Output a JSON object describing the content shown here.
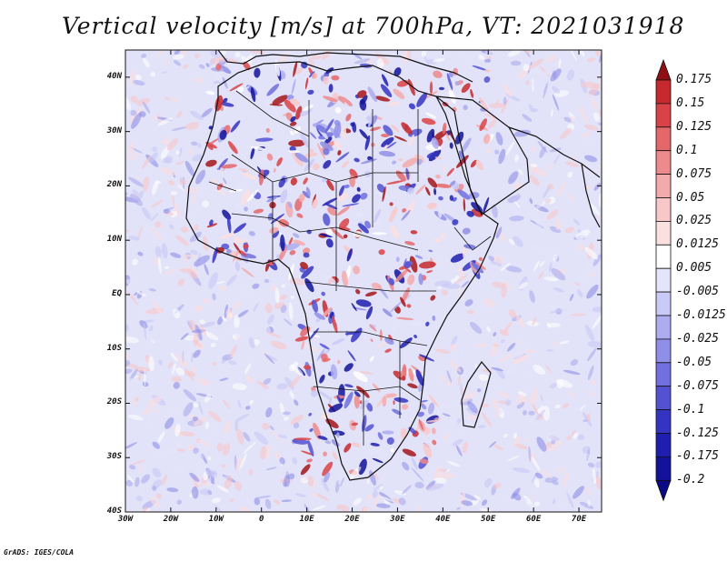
{
  "title": "Vertical velocity [m/s] at 700hPa, VT: 2021031918",
  "credit": "GrADS: IGES/COLA",
  "map": {
    "region": "Africa",
    "variable": "vertical velocity",
    "level": "700hPa",
    "valid_time": "2021031918",
    "lat_range": [
      -40,
      45
    ],
    "lon_range": [
      -30,
      75
    ]
  },
  "axes": {
    "lat_ticks": [
      {
        "value": 40,
        "label": "40N"
      },
      {
        "value": 30,
        "label": "30N"
      },
      {
        "value": 20,
        "label": "20N"
      },
      {
        "value": 10,
        "label": "10N"
      },
      {
        "value": 0,
        "label": "EQ"
      },
      {
        "value": -10,
        "label": "10S"
      },
      {
        "value": -20,
        "label": "20S"
      },
      {
        "value": -30,
        "label": "30S"
      },
      {
        "value": -40,
        "label": "40S"
      }
    ],
    "lon_ticks": [
      {
        "value": -30,
        "label": "30W"
      },
      {
        "value": -20,
        "label": "20W"
      },
      {
        "value": -10,
        "label": "10W"
      },
      {
        "value": 0,
        "label": "0"
      },
      {
        "value": 10,
        "label": "10E"
      },
      {
        "value": 20,
        "label": "20E"
      },
      {
        "value": 30,
        "label": "30E"
      },
      {
        "value": 40,
        "label": "40E"
      },
      {
        "value": 50,
        "label": "50E"
      },
      {
        "value": 60,
        "label": "60E"
      },
      {
        "value": 70,
        "label": "70E"
      }
    ]
  },
  "colorbar": {
    "levels": [
      {
        "label": "0.175",
        "color": "#a3161a"
      },
      {
        "label": "0.15",
        "color": "#c62a2e"
      },
      {
        "label": "0.125",
        "color": "#d94347"
      },
      {
        "label": "0.1",
        "color": "#e4676a"
      },
      {
        "label": "0.075",
        "color": "#ec8a8c"
      },
      {
        "label": "0.05",
        "color": "#f3aaab"
      },
      {
        "label": "0.025",
        "color": "#f8c8c9"
      },
      {
        "label": "0.0125",
        "color": "#fbe0e0"
      },
      {
        "label": "0.005",
        "color": "#ffffff"
      },
      {
        "label": "-0.005",
        "color": "#e4e4fb"
      },
      {
        "label": "-0.0125",
        "color": "#cacaf6"
      },
      {
        "label": "-0.025",
        "color": "#acacef"
      },
      {
        "label": "-0.05",
        "color": "#8f8fe8"
      },
      {
        "label": "-0.075",
        "color": "#7070de"
      },
      {
        "label": "-0.1",
        "color": "#5252d2"
      },
      {
        "label": "-0.125",
        "color": "#3434c2"
      },
      {
        "label": "-0.175",
        "color": "#1f1faf"
      },
      {
        "label": "-0.2",
        "color": "#12129a"
      }
    ],
    "top_cap_color": "#8f0f12",
    "bottom_cap_color": "#0a0a86"
  }
}
